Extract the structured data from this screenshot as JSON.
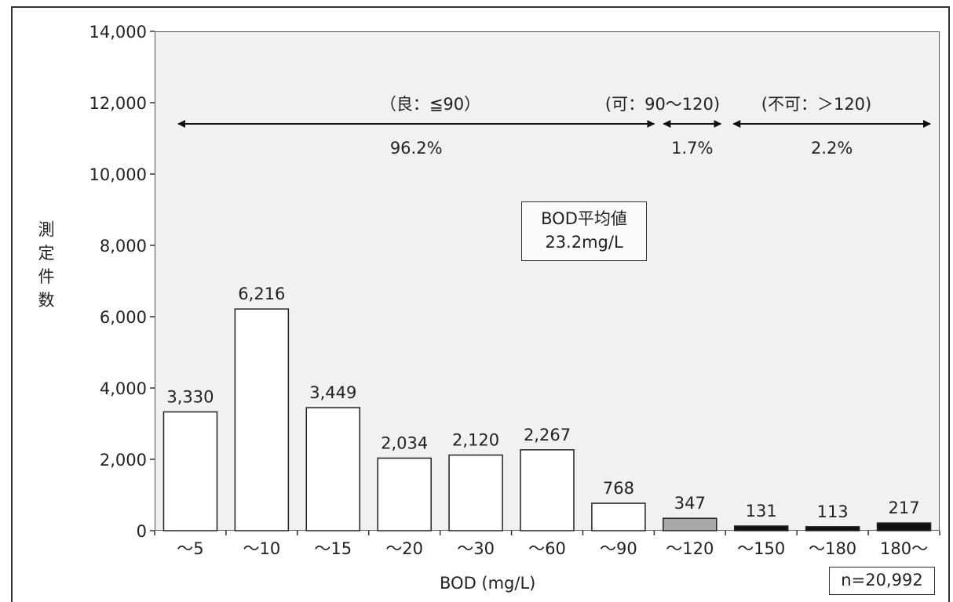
{
  "chart_data": {
    "type": "bar",
    "categories": [
      "～5",
      "～10",
      "～15",
      "～20",
      "～30",
      "～60",
      "～90",
      "～120",
      "～150",
      "～180",
      "180～"
    ],
    "values": [
      3330,
      6216,
      3449,
      2034,
      2120,
      2267,
      768,
      347,
      131,
      113,
      217
    ],
    "value_labels": [
      "3,330",
      "6,216",
      "3,449",
      "2,034",
      "2,120",
      "2,267",
      "768",
      "347",
      "131",
      "113",
      "217"
    ],
    "bar_colors": [
      "#ffffff",
      "#ffffff",
      "#ffffff",
      "#ffffff",
      "#ffffff",
      "#ffffff",
      "#ffffff",
      "#a9a9a9",
      "#111111",
      "#111111",
      "#111111"
    ],
    "ylim": [
      0,
      14000
    ],
    "yticks": [
      0,
      2000,
      4000,
      6000,
      8000,
      10000,
      12000,
      14000
    ],
    "ytick_labels": [
      "0",
      "2,000",
      "4,000",
      "6,000",
      "8,000",
      "10,000",
      "12,000",
      "14,000"
    ],
    "ylabel": "測定件数",
    "xlabel": "BOD (mg/L)",
    "grid": false,
    "ranges": [
      {
        "label": "（良：≦90）",
        "percent": "96.2%"
      },
      {
        "label": "(可：90～120)",
        "percent": "1.7%"
      },
      {
        "label": "(不可：＞120)",
        "percent": "2.2%"
      }
    ],
    "average_box": {
      "line1": "BOD平均値",
      "line2": "23.2mg/L"
    },
    "sample_size": "n=20,992"
  }
}
